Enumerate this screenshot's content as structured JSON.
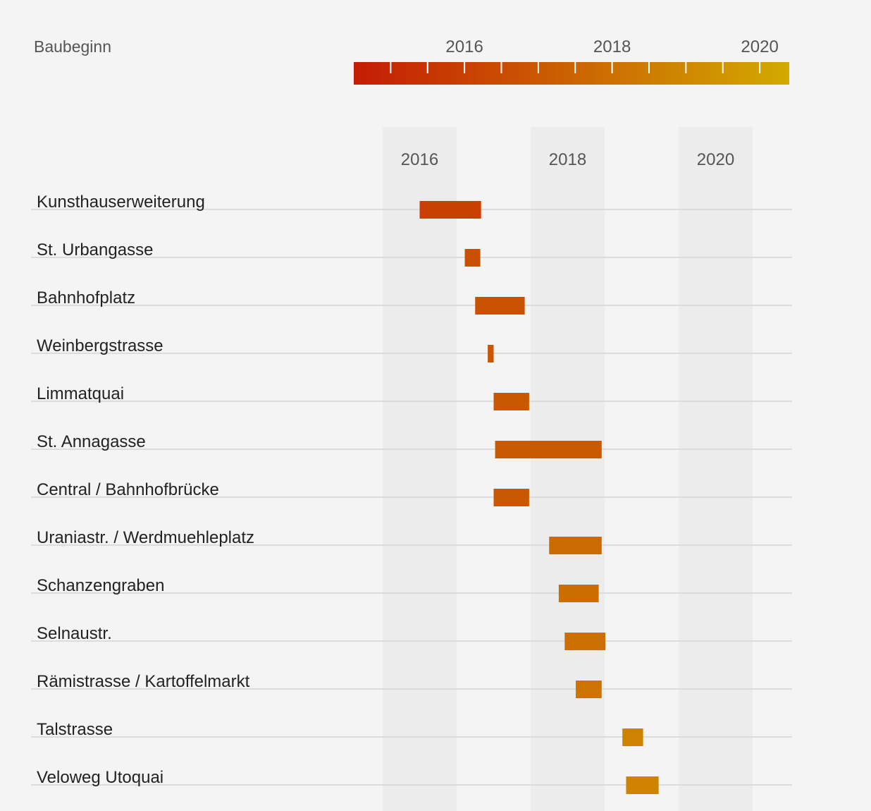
{
  "chart_data": {
    "type": "gantt",
    "legend": {
      "title": "Baubeginn",
      "tick_labels": [
        "2016",
        "2018",
        "2020"
      ],
      "domain": [
        2015.0,
        2020.9
      ],
      "color_start": "#c41c04",
      "color_end": "#d2aa00"
    },
    "x_axis": {
      "tick_labels": [
        "2016",
        "2018",
        "2020"
      ],
      "shaded_years": [
        [
          2016,
          2017
        ],
        [
          2018,
          2019
        ],
        [
          2020,
          2021
        ]
      ],
      "xlim": [
        2016,
        2021
      ]
    },
    "grid": true,
    "series": [
      {
        "label": "Kunsthauserweiterung",
        "start": 2016.5,
        "end": 2017.33
      },
      {
        "label": "St. Urbangasse",
        "start": 2017.11,
        "end": 2017.32
      },
      {
        "label": "Bahnhofplatz",
        "start": 2017.25,
        "end": 2017.92
      },
      {
        "label": "Weinbergstrasse",
        "start": 2017.42,
        "end": 2017.5
      },
      {
        "label": "Limmatquai",
        "start": 2017.5,
        "end": 2017.98
      },
      {
        "label": "St. Annagasse",
        "start": 2017.52,
        "end": 2018.96
      },
      {
        "label": "Central / Bahnhofbrücke",
        "start": 2017.5,
        "end": 2017.98
      },
      {
        "label": "Uraniastr. / Werdmuehleplatz",
        "start": 2018.25,
        "end": 2018.96
      },
      {
        "label": "Schanzengraben",
        "start": 2018.38,
        "end": 2018.92
      },
      {
        "label": "Selnaustr.",
        "start": 2018.46,
        "end": 2019.01
      },
      {
        "label": "Rämistrasse / Kartoffelmarkt",
        "start": 2018.61,
        "end": 2018.96
      },
      {
        "label": "Talstrasse",
        "start": 2019.24,
        "end": 2019.52
      },
      {
        "label": "Veloweg Utoquai",
        "start": 2019.29,
        "end": 2019.73
      }
    ]
  }
}
